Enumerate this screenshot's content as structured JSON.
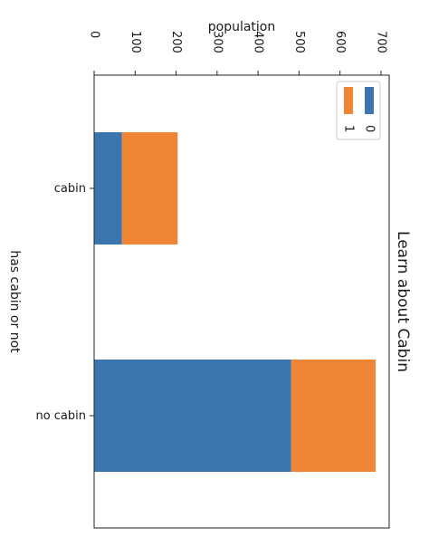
{
  "chart_data": {
    "type": "bar",
    "orientation": "horizontal",
    "stacked": true,
    "rotation_degrees": 90,
    "title": "Learn about Cabin",
    "xlabel": "has cabin or not",
    "ylabel": "population",
    "categories": [
      "cabin",
      "no cabin"
    ],
    "series": [
      {
        "name": "0",
        "values": [
          68,
          481
        ],
        "color": "#3b75af"
      },
      {
        "name": "1",
        "values": [
          136,
          206
        ],
        "color": "#ef8636"
      }
    ],
    "ylim": [
      0,
      720
    ],
    "yticks": [
      0,
      100,
      200,
      300,
      400,
      500,
      600,
      700
    ],
    "grid": false,
    "legend_position": "upper-right"
  }
}
